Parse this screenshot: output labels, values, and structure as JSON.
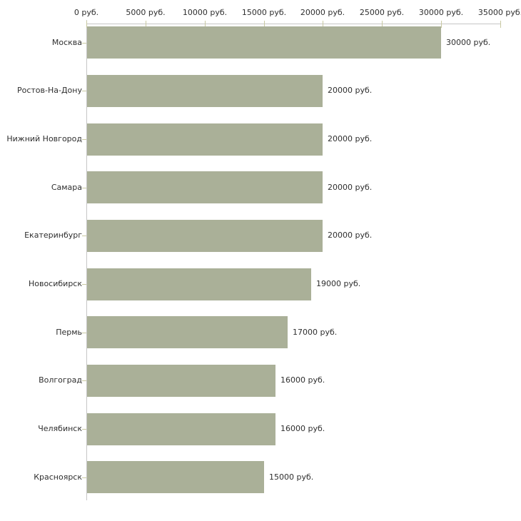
{
  "chart_data": {
    "type": "bar",
    "orientation": "horizontal",
    "title": "",
    "xlabel": "",
    "ylabel": "",
    "categories": [
      "Москва",
      "Ростов-На-Дону",
      "Нижний Новгород",
      "Самара",
      "Екатеринбург",
      "Новосибирск",
      "Пермь",
      "Волгоград",
      "Челябинск",
      "Красноярск"
    ],
    "values": [
      30000,
      20000,
      20000,
      20000,
      20000,
      19000,
      17000,
      16000,
      16000,
      15000
    ],
    "value_labels": [
      "30000 руб.",
      "20000 руб.",
      "20000 руб.",
      "20000 руб.",
      "20000 руб.",
      "19000 руб.",
      "17000 руб.",
      "16000 руб.",
      "16000 руб.",
      "15000 руб."
    ],
    "x_ticks": [
      0,
      5000,
      10000,
      15000,
      20000,
      25000,
      30000,
      35000
    ],
    "x_tick_labels": [
      "0 руб.",
      "5000 руб.",
      "10000 руб.",
      "15000 руб.",
      "20000 руб.",
      "25000 руб.",
      "30000 руб.",
      "35000 руб."
    ],
    "xlim": [
      0,
      35000
    ],
    "grid": false,
    "legend": "none",
    "unit_suffix": "руб.",
    "colors": {
      "bar_fill": "#aab098",
      "axis_line": "#c6c6c6",
      "tick_mark": "#c9c9a2",
      "text": "#2e2e2e"
    }
  }
}
